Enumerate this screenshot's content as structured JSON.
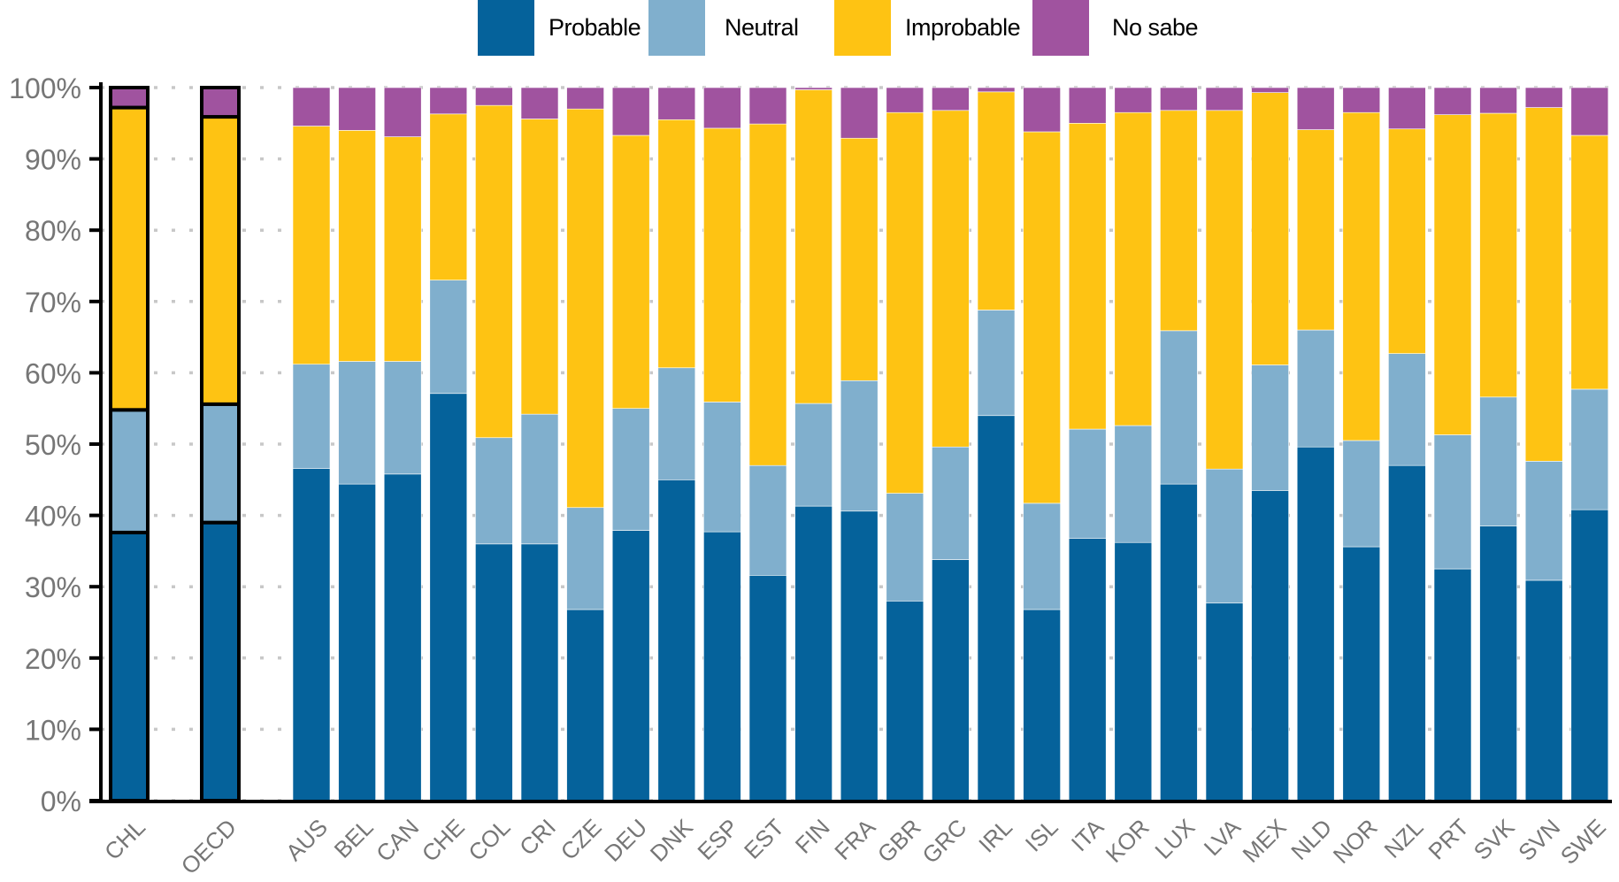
{
  "chart_data": {
    "type": "bar",
    "stacked": true,
    "title": "",
    "xlabel": "",
    "ylabel": "",
    "ylim": [
      0,
      100
    ],
    "y_ticks": [
      "0%",
      "10%",
      "20%",
      "30%",
      "40%",
      "50%",
      "60%",
      "70%",
      "80%",
      "90%",
      "100%"
    ],
    "grid": "horizontal dotted",
    "legend_position": "top-center",
    "highlighted_categories": [
      "CHL",
      "OECD"
    ],
    "categories": [
      "CHL",
      "OECD",
      "AUS",
      "BEL",
      "CAN",
      "CHE",
      "COL",
      "CRI",
      "CZE",
      "DEU",
      "DNK",
      "ESP",
      "EST",
      "FIN",
      "FRA",
      "GBR",
      "GRC",
      "IRL",
      "ISL",
      "ITA",
      "KOR",
      "LUX",
      "LVA",
      "MEX",
      "NLD",
      "NOR",
      "NZL",
      "PRT",
      "SVK",
      "SVN",
      "SWE"
    ],
    "series": [
      {
        "name": "Probable",
        "color": "#05629b",
        "values": [
          37.6,
          39.0,
          46.6,
          44.4,
          45.8,
          57.1,
          36.0,
          36.0,
          26.8,
          37.9,
          45.0,
          37.7,
          31.6,
          41.3,
          40.6,
          28.0,
          33.8,
          54.0,
          26.8,
          36.8,
          36.2,
          44.4,
          27.7,
          43.5,
          49.6,
          35.6,
          47.0,
          32.5,
          38.5,
          30.9,
          40.8
        ]
      },
      {
        "name": "Neutral",
        "color": "#80afcd",
        "values": [
          17.2,
          16.6,
          14.6,
          17.2,
          15.8,
          15.9,
          14.9,
          18.2,
          14.3,
          17.1,
          15.7,
          18.2,
          15.4,
          14.4,
          18.3,
          15.1,
          15.8,
          14.8,
          14.9,
          15.3,
          16.4,
          21.5,
          18.8,
          17.6,
          16.4,
          14.9,
          15.7,
          18.8,
          18.1,
          16.7,
          16.9
        ]
      },
      {
        "name": "Improbable",
        "color": "#fec313",
        "values": [
          42.4,
          40.3,
          33.4,
          32.4,
          31.5,
          23.3,
          46.6,
          41.4,
          55.9,
          38.3,
          34.8,
          38.4,
          47.9,
          44.0,
          34.0,
          53.4,
          47.2,
          30.6,
          52.1,
          42.9,
          43.9,
          30.9,
          50.3,
          38.2,
          28.1,
          46.0,
          31.5,
          44.9,
          39.8,
          49.6,
          35.6
        ]
      },
      {
        "name": "No sabe",
        "color": "#a0539f",
        "values": [
          2.8,
          4.1,
          5.4,
          6.0,
          6.9,
          3.7,
          2.5,
          4.4,
          3.0,
          6.7,
          4.5,
          5.7,
          5.1,
          0.3,
          7.1,
          3.5,
          3.2,
          0.6,
          6.2,
          5.0,
          3.5,
          3.2,
          3.2,
          0.7,
          5.9,
          3.5,
          5.8,
          3.8,
          3.6,
          2.8,
          6.7
        ]
      }
    ]
  }
}
